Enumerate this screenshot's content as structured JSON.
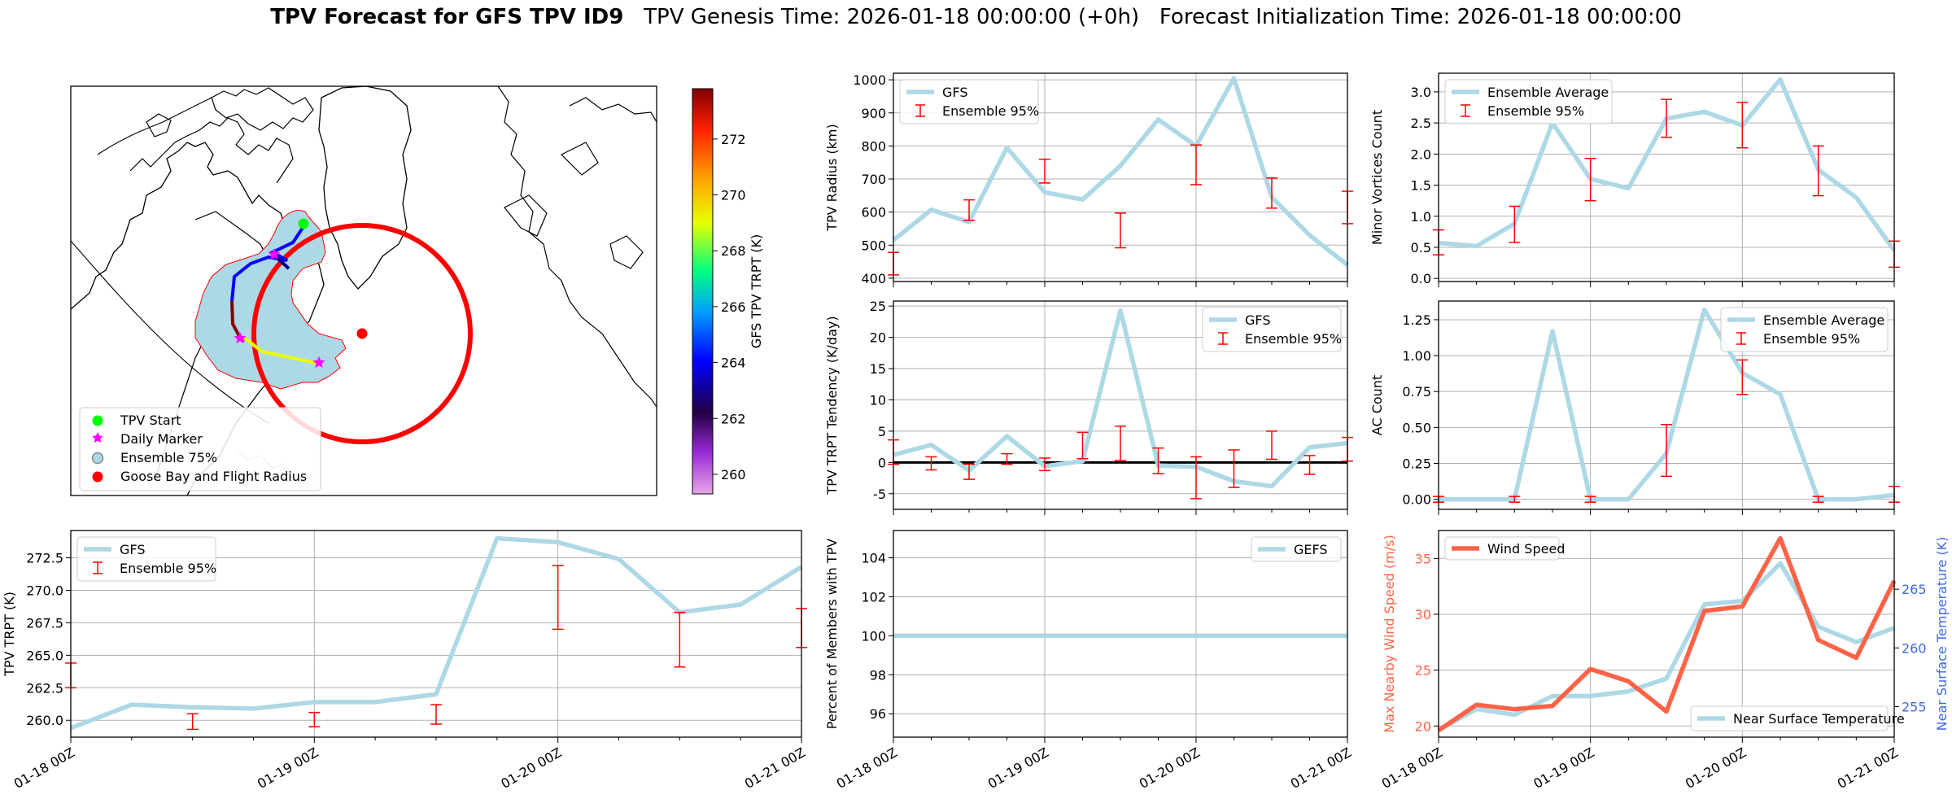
{
  "title": {
    "bold": "TPV Forecast for GFS TPV ID9",
    "genesis": "TPV Genesis Time: 2026-01-18 00:00:00 (+0h)",
    "init": "Forecast Initialization Time: 2026-01-18 00:00:00"
  },
  "time_ticks": [
    "01-18 00Z",
    "01-19 00Z",
    "01-20 00Z",
    "01-21 00Z"
  ],
  "colors": {
    "gfs_line": "#add8e6",
    "ensemble": "#ff0000",
    "wind": "#ff6347",
    "temp_axis": "#4169e1",
    "cyclone_fill": "#add8e6",
    "start": "#00ff00",
    "daily": "#ff00ff",
    "goose_bay": "#ff0000"
  },
  "chart_data": [
    {
      "id": "map",
      "type": "map",
      "colorbar": {
        "label": "GFS TPV TRPT (K)",
        "ticks": [
          260,
          262,
          264,
          266,
          268,
          270,
          272
        ],
        "range": [
          259.3,
          273.8
        ]
      },
      "legend": {
        "items": [
          {
            "label": "TPV Start",
            "marker": "circle",
            "color": "#00ff00"
          },
          {
            "label": "Daily Marker",
            "marker": "star",
            "color": "#ff00ff"
          },
          {
            "label": "Ensemble 75%",
            "marker": "patch",
            "color": "#add8e6"
          },
          {
            "label": "Goose Bay and Flight Radius",
            "marker": "circle",
            "color": "#ff0000"
          }
        ]
      }
    },
    {
      "id": "radius",
      "type": "line",
      "ylabel": "TPV Radius (km)",
      "ylim": [
        390,
        1020
      ],
      "yticks": [
        400,
        500,
        600,
        700,
        800,
        900,
        1000
      ],
      "legend": {
        "position": "top-left",
        "line_label": "GFS",
        "err_label": "Ensemble 95%"
      },
      "gfs": [
        515,
        607,
        570,
        795,
        660,
        638,
        740,
        880,
        800,
        1005,
        645,
        530,
        440
      ],
      "errorbars": [
        {
          "x": 0.0,
          "lo": 410,
          "hi": 478
        },
        {
          "x": 0.5,
          "lo": 575,
          "hi": 637
        },
        {
          "x": 1.0,
          "lo": 688,
          "hi": 760
        },
        {
          "x": 1.5,
          "lo": 492,
          "hi": 597
        },
        {
          "x": 2.0,
          "lo": 683,
          "hi": 803
        },
        {
          "x": 2.5,
          "lo": 612,
          "hi": 703
        },
        {
          "x": 3.0,
          "lo": 565,
          "hi": 663
        }
      ]
    },
    {
      "id": "minor",
      "type": "line",
      "ylabel": "Minor Vortices Count",
      "ylim": [
        -0.05,
        3.3
      ],
      "yticks": [
        0.0,
        0.5,
        1.0,
        1.5,
        2.0,
        2.5,
        3.0
      ],
      "ytick_labels": [
        "0.0",
        "0.5",
        "1.0",
        "1.5",
        "2.0",
        "2.5",
        "3.0"
      ],
      "legend": {
        "position": "top-left",
        "line_label": "Ensemble Average",
        "err_label": "Ensemble 95%"
      },
      "gfs": [
        0.57,
        0.52,
        0.88,
        2.5,
        1.6,
        1.45,
        2.57,
        2.68,
        2.46,
        3.2,
        1.75,
        1.3,
        0.45
      ],
      "errorbars": [
        {
          "x": 0.0,
          "lo": 0.38,
          "hi": 0.78
        },
        {
          "x": 0.5,
          "lo": 0.58,
          "hi": 1.16
        },
        {
          "x": 1.0,
          "lo": 1.25,
          "hi": 1.93
        },
        {
          "x": 1.5,
          "lo": 2.27,
          "hi": 2.88
        },
        {
          "x": 2.0,
          "lo": 2.1,
          "hi": 2.83
        },
        {
          "x": 2.5,
          "lo": 1.33,
          "hi": 2.13
        },
        {
          "x": 3.0,
          "lo": 0.18,
          "hi": 0.6
        }
      ]
    },
    {
      "id": "tendency",
      "type": "line",
      "ylabel": "TPV TRPT Tendency (K/day)",
      "ylim": [
        -7.5,
        25.8
      ],
      "yticks": [
        -5,
        0,
        5,
        10,
        15,
        20,
        25
      ],
      "zero_line": true,
      "legend": {
        "position": "top-right",
        "line_label": "GFS",
        "err_label": "Ensemble 95%"
      },
      "gfs": [
        1.2,
        2.8,
        -1.3,
        4.2,
        -0.6,
        0.2,
        24.3,
        -0.5,
        -0.7,
        -3.0,
        -3.8,
        2.4,
        3.1
      ],
      "errorbars": [
        {
          "x": 0.0,
          "lo": -0.3,
          "hi": 3.6
        },
        {
          "x": 0.25,
          "lo": -1.2,
          "hi": 0.9
        },
        {
          "x": 0.5,
          "lo": -2.7,
          "hi": -0.3
        },
        {
          "x": 0.75,
          "lo": -0.3,
          "hi": 1.4
        },
        {
          "x": 1.0,
          "lo": -1.3,
          "hi": 0.7
        },
        {
          "x": 1.25,
          "lo": 0.6,
          "hi": 4.8
        },
        {
          "x": 1.5,
          "lo": 0.3,
          "hi": 5.8
        },
        {
          "x": 1.75,
          "lo": -1.8,
          "hi": 2.3
        },
        {
          "x": 2.0,
          "lo": -5.8,
          "hi": 0.9
        },
        {
          "x": 2.25,
          "lo": -4.0,
          "hi": 2.0
        },
        {
          "x": 2.5,
          "lo": 0.5,
          "hi": 5.0
        },
        {
          "x": 2.75,
          "lo": -1.9,
          "hi": 1.1
        },
        {
          "x": 3.0,
          "lo": 0.2,
          "hi": 4.0
        }
      ]
    },
    {
      "id": "ac",
      "type": "line",
      "ylabel": "AC Count",
      "ylim": [
        -0.07,
        1.38
      ],
      "yticks": [
        0.0,
        0.25,
        0.5,
        0.75,
        1.0,
        1.25
      ],
      "ytick_labels": [
        "0.00",
        "0.25",
        "0.50",
        "0.75",
        "1.00",
        "1.25"
      ],
      "legend": {
        "position": "top-right",
        "line_label": "Ensemble Average",
        "err_label": "Ensemble 95%"
      },
      "gfs": [
        0.0,
        0.0,
        0.0,
        1.17,
        0.0,
        0.0,
        0.32,
        1.32,
        0.88,
        0.73,
        0.0,
        0.0,
        0.03
      ],
      "errorbars": [
        {
          "x": 0.0,
          "lo": -0.02,
          "hi": 0.02
        },
        {
          "x": 0.5,
          "lo": -0.02,
          "hi": 0.02
        },
        {
          "x": 1.0,
          "lo": -0.02,
          "hi": 0.02
        },
        {
          "x": 1.5,
          "lo": 0.16,
          "hi": 0.52
        },
        {
          "x": 2.0,
          "lo": 0.73,
          "hi": 0.97
        },
        {
          "x": 2.5,
          "lo": -0.02,
          "hi": 0.02
        },
        {
          "x": 3.0,
          "lo": -0.02,
          "hi": 0.09
        }
      ]
    },
    {
      "id": "trpt",
      "type": "line",
      "ylabel": "TPV TRPT (K)",
      "ylim": [
        258.7,
        274.6
      ],
      "yticks": [
        260.0,
        262.5,
        265.0,
        267.5,
        270.0,
        272.5
      ],
      "ytick_labels": [
        "260.0",
        "262.5",
        "265.0",
        "267.5",
        "270.0",
        "272.5"
      ],
      "legend": {
        "position": "top-left",
        "line_label": "GFS",
        "err_label": "Ensemble 95%"
      },
      "gfs": [
        259.4,
        261.2,
        261.0,
        260.9,
        261.4,
        261.4,
        262.0,
        274.0,
        273.7,
        272.4,
        268.3,
        268.9,
        271.8
      ],
      "errorbars": [
        {
          "x": 0.0,
          "lo": 262.5,
          "hi": 264.4
        },
        {
          "x": 0.5,
          "lo": 259.3,
          "hi": 260.5
        },
        {
          "x": 1.0,
          "lo": 259.5,
          "hi": 260.6
        },
        {
          "x": 1.5,
          "lo": 259.7,
          "hi": 261.2
        },
        {
          "x": 2.0,
          "lo": 267.0,
          "hi": 271.9
        },
        {
          "x": 2.5,
          "lo": 264.1,
          "hi": 268.3
        },
        {
          "x": 3.0,
          "lo": 265.6,
          "hi": 268.6
        }
      ]
    },
    {
      "id": "percent",
      "type": "line",
      "ylabel": "Percent of Members with TPV",
      "ylim": [
        94.8,
        105.4
      ],
      "yticks": [
        96,
        98,
        100,
        102,
        104
      ],
      "legend": {
        "position": "top-right",
        "line_label": "GEFS"
      },
      "gfs": [
        100,
        100,
        100,
        100,
        100,
        100,
        100,
        100,
        100,
        100,
        100,
        100,
        100
      ]
    },
    {
      "id": "wind_temp",
      "type": "line",
      "ylabel": "Max Nearby Wind Speed (m/s)",
      "ylabel_right": "Near Surface Temperature (K)",
      "ylim": [
        19,
        37.5
      ],
      "yticks": [
        20,
        25,
        30,
        35
      ],
      "ylim_right": [
        252.4,
        270.0
      ],
      "yticks_right": [
        255,
        260,
        265
      ],
      "legend_wind": {
        "position": "top-left",
        "label": "Wind Speed"
      },
      "legend_temp": {
        "position": "bottom-right",
        "label": "Near Surface Temperature"
      },
      "wind": [
        19.6,
        21.9,
        21.5,
        21.8,
        25.1,
        24.0,
        21.3,
        30.3,
        30.7,
        36.8,
        27.7,
        26.1,
        33.0
      ],
      "temp": [
        253.0,
        254.8,
        254.3,
        255.9,
        255.9,
        256.3,
        257.4,
        263.7,
        264.0,
        267.2,
        261.8,
        260.5,
        261.7
      ]
    }
  ]
}
